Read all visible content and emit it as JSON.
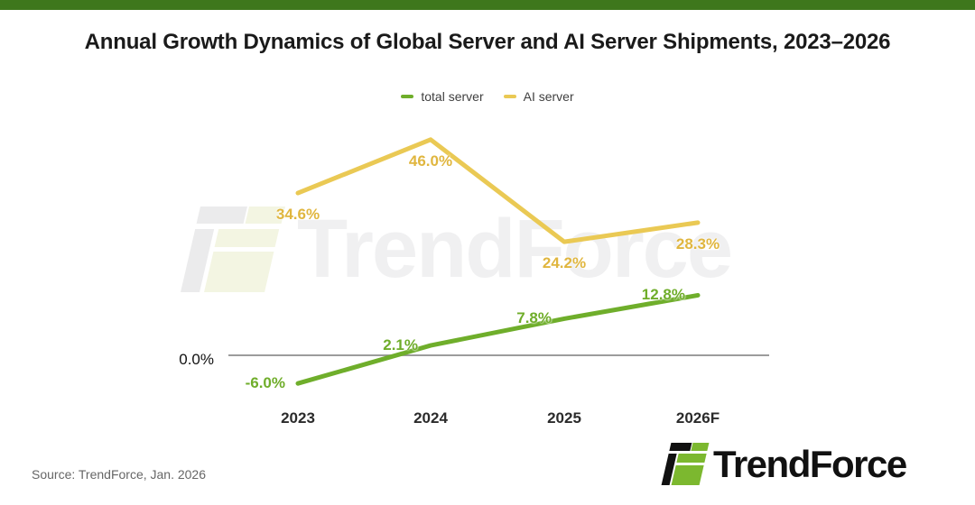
{
  "header": {
    "title": "Annual Growth Dynamics of Global Server and AI Server Shipments, 2023–2026"
  },
  "chart_data": {
    "type": "line",
    "title": "Annual Growth Dynamics of Global Server and AI Server Shipments, 2023–2026",
    "categories": [
      "2023",
      "2024",
      "2025",
      "2026F"
    ],
    "series": [
      {
        "name": "total server",
        "color": "#6FAE2B",
        "label_color": "#6FAD2A",
        "values": [
          -6.0,
          2.1,
          7.8,
          12.8
        ],
        "point_labels": [
          "-6.0%",
          "2.1%",
          "7.8%",
          "12.8%"
        ]
      },
      {
        "name": "AI server",
        "color": "#EAC954",
        "label_color": "#E0B63F",
        "values": [
          34.6,
          46.0,
          24.2,
          28.3
        ],
        "point_labels": [
          "34.6%",
          "46.0%",
          "24.2%",
          "28.3%"
        ]
      }
    ],
    "baseline_label": "0.0%",
    "xlabel": "",
    "ylabel": "",
    "ylim": [
      -10,
      50
    ],
    "grid": false,
    "legend_position": "top"
  },
  "watermark": {
    "text": "TrendForce"
  },
  "footer": {
    "source": "Source: TrendForce, Jan. 2026",
    "logo_text": "TrendForce"
  },
  "theme": {
    "top_bar": "#3E771C",
    "axis": "#8E8E8E",
    "logo_black": "#111111",
    "logo_green": "#7CB82F",
    "watermark_gray": "#EBEBEC",
    "watermark_green": "#F3F5E2",
    "watermark_text": "#F0F0F1"
  }
}
